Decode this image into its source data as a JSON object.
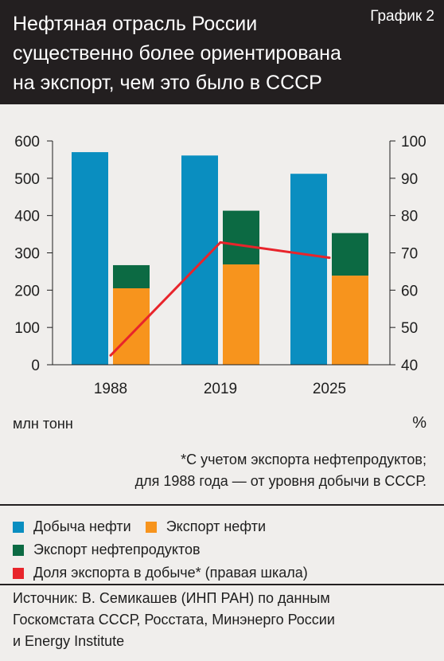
{
  "header": {
    "title": "Нефтяная отрасль России существенно более ориентирована на экспорт, чем это было в СССР",
    "graph_label": "График 2"
  },
  "units": {
    "left": "млн тонн",
    "right": "%"
  },
  "note": {
    "line1": "*С учетом экспорта нефтепродуктов;",
    "line2": "для 1988 года — от уровня добычи в СССР."
  },
  "legend": [
    {
      "label": "Добыча нефти",
      "color": "#0a8ec0"
    },
    {
      "label": "Экспорт нефти",
      "color": "#f7941d"
    },
    {
      "label": "Экспорт нефтепродуктов",
      "color": "#0c6a43"
    },
    {
      "label": "Доля экспорта в добыче* (правая шкала)",
      "color": "#e8242b"
    }
  ],
  "source": {
    "line1": "Источник: В. Семикашев (ИНП РАН) по данным",
    "line2": "Госкомстата СССР, Росстата, Минэнерго России",
    "line3": "и Energy Institute"
  },
  "chart_data": {
    "type": "bar",
    "categories": [
      "1988",
      "2019",
      "2025"
    ],
    "series": [
      {
        "name": "Добыча нефти",
        "type": "bar",
        "axis": "left",
        "values": [
          570,
          561,
          512
        ],
        "color": "#0a8ec0"
      },
      {
        "name": "Экспорт нефти",
        "type": "stacked-bar",
        "axis": "left",
        "values": [
          205,
          269,
          239
        ],
        "color": "#f7941d"
      },
      {
        "name": "Экспорт нефтепродуктов",
        "type": "stacked-bar",
        "axis": "left",
        "values": [
          62,
          144,
          114
        ],
        "color": "#0c6a43"
      },
      {
        "name": "Доля экспорта в добыче* (правая шкала)",
        "type": "line",
        "axis": "right",
        "values": [
          42.5,
          72.8,
          68.7
        ],
        "color": "#e8242b"
      }
    ],
    "y_left": {
      "lim": [
        0,
        600
      ],
      "ticks": [
        0,
        100,
        200,
        300,
        400,
        500,
        600
      ]
    },
    "y_right": {
      "lim": [
        40,
        100
      ],
      "ticks": [
        40,
        50,
        60,
        70,
        80,
        90,
        100
      ]
    },
    "grid": false
  }
}
